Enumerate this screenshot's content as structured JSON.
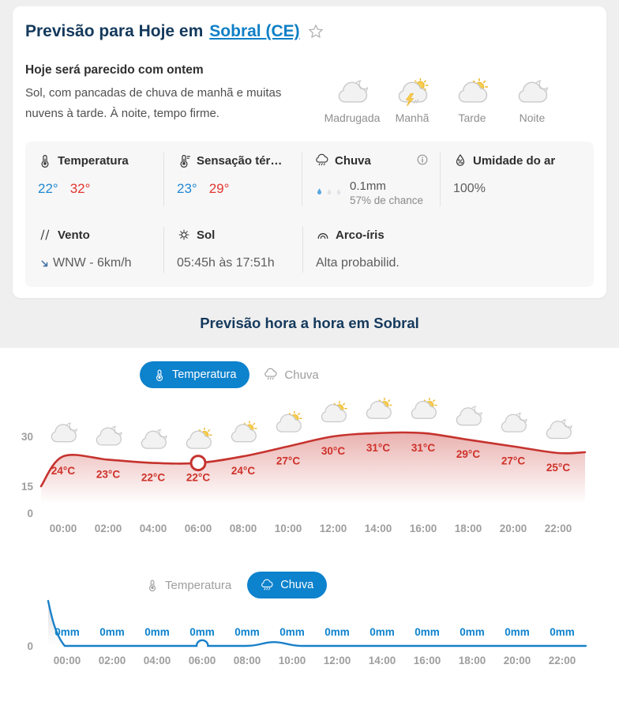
{
  "header": {
    "title_prefix": "Previsão para Hoje em",
    "city_link": "Sobral (CE)",
    "star_icon": "star-outline"
  },
  "summary": {
    "headline": "Hoje será parecido com ontem",
    "description": "Sol, com pancadas de chuva de manhã e muitas nuvens à tarde. À noite, tempo firme."
  },
  "periods": [
    {
      "label": "Madrugada",
      "icon": "moon-cloud"
    },
    {
      "label": "Manhã",
      "icon": "storm-sun-cloud"
    },
    {
      "label": "Tarde",
      "icon": "sun-cloud"
    },
    {
      "label": "Noite",
      "icon": "moon-cloud"
    }
  ],
  "stats": {
    "temperature": {
      "label": "Temperatura",
      "icon": "thermometer-icon",
      "min": "22°",
      "max": "32°"
    },
    "feels_like": {
      "label": "Sensação tér…",
      "icon": "thermometer-feels-icon",
      "min": "23°",
      "max": "29°"
    },
    "rain": {
      "label": "Chuva",
      "icon": "rain-cloud-icon",
      "info_icon": "info-icon",
      "amount": "0.1mm",
      "chance": "57% de chance",
      "droplet_colors": [
        "#58a8de",
        "#dfe3e7",
        "#dfe3e7"
      ]
    },
    "humidity": {
      "label": "Umidade do ar",
      "icon": "humidity-icon",
      "value": "100%"
    },
    "wind": {
      "label": "Vento",
      "icon": "wind-icon",
      "direction_icon": "arrow-southeast",
      "value": "WNW - 6km/h"
    },
    "sun": {
      "label": "Sol",
      "icon": "sun-icon",
      "value": "05:45h às 17:51h"
    },
    "rainbow": {
      "label": "Arco-íris",
      "icon": "rainbow-icon",
      "value": "Alta probabilid."
    }
  },
  "hourly_section": {
    "title": "Previsão hora a hora em Sobral"
  },
  "toggles": {
    "chart1": {
      "temperature": {
        "label": "Temperatura",
        "active": true
      },
      "rain": {
        "label": "Chuva",
        "active": false
      }
    },
    "chart2": {
      "temperature": {
        "label": "Temperatura",
        "active": false
      },
      "rain": {
        "label": "Chuva",
        "active": true
      }
    }
  },
  "colors": {
    "accent_blue": "#0d82cd",
    "temp_line_red": "#c6332e",
    "rain_line_blue": "#1a80c9",
    "min_temp_blue": "#1e88d2",
    "max_temp_red": "#e43530",
    "title_navy": "#14395c"
  },
  "chart_data": [
    {
      "type": "line",
      "title": "Temperatura hora a hora",
      "x": [
        "00:00",
        "02:00",
        "04:00",
        "06:00",
        "08:00",
        "10:00",
        "12:00",
        "14:00",
        "16:00",
        "18:00",
        "20:00",
        "22:00"
      ],
      "values": [
        24,
        23,
        22,
        22,
        24,
        27,
        30,
        31,
        31,
        29,
        27,
        25
      ],
      "unit": "°C",
      "point_labels": [
        "24°C",
        "23°C",
        "22°C",
        "22°C",
        "24°C",
        "27°C",
        "30°C",
        "31°C",
        "31°C",
        "29°C",
        "27°C",
        "25°C"
      ],
      "icons": [
        "moon-cloud",
        "moon-cloud",
        "moon-cloud",
        "sun-cloud",
        "sun-cloud",
        "sun-cloud",
        "sun-cloud",
        "sun-cloud",
        "sun-cloud",
        "moon-cloud",
        "moon-cloud",
        "moon-cloud"
      ],
      "y_ticks": [
        30,
        15,
        0
      ],
      "ylim": [
        0,
        35
      ],
      "selected_index": 3,
      "line_color": "#c6332e",
      "grid": false,
      "legend_position": "none"
    },
    {
      "type": "line",
      "title": "Chuva hora a hora",
      "x": [
        "00:00",
        "02:00",
        "04:00",
        "06:00",
        "08:00",
        "10:00",
        "12:00",
        "14:00",
        "16:00",
        "18:00",
        "20:00",
        "22:00"
      ],
      "values": [
        0,
        0,
        0,
        0,
        0,
        0,
        0,
        0,
        0,
        0,
        0,
        0
      ],
      "unit": "mm",
      "point_labels": [
        "0mm",
        "0mm",
        "0mm",
        "0mm",
        "0mm",
        "0mm",
        "0mm",
        "0mm",
        "0mm",
        "0mm",
        "0mm",
        "0mm"
      ],
      "y_ticks": [
        0
      ],
      "line_color": "#1a80c9",
      "grid": false,
      "legend_position": "none"
    }
  ]
}
